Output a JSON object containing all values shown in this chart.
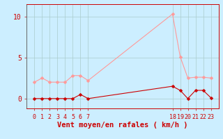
{
  "background_color": "#cceeff",
  "grid_color": "#aacccc",
  "xlabel": "Vent moyen/en rafales ( km/h )",
  "yticks": [
    0,
    5,
    10
  ],
  "ylim": [
    -1.2,
    11.5
  ],
  "mean_color": "#cc0000",
  "gust_color": "#ff9999",
  "line_width": 0.8,
  "marker_size": 2.5,
  "hours": [
    0,
    1,
    2,
    3,
    4,
    5,
    6,
    7,
    18,
    19,
    20,
    21,
    22,
    23
  ],
  "mean_wind": [
    0,
    0,
    0,
    0,
    0,
    0,
    0.5,
    0,
    1.5,
    1.0,
    0,
    1.0,
    1.0,
    0.1
  ],
  "gust_wind": [
    2,
    2.5,
    2,
    2,
    2,
    2.8,
    2.8,
    2.2,
    10.3,
    5.1,
    2.5,
    2.6,
    2.6,
    2.5
  ],
  "visible_xtick_hours": [
    0,
    1,
    2,
    3,
    4,
    5,
    6,
    7,
    18,
    19,
    20,
    21,
    22,
    23
  ],
  "xlabel_fontsize": 7.5,
  "ytick_fontsize": 7,
  "xtick_fontsize": 6
}
